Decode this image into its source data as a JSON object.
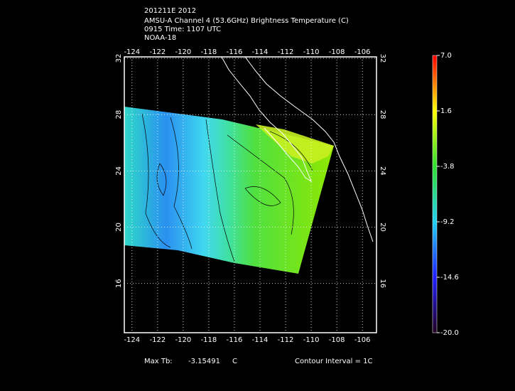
{
  "header": {
    "lines": [
      "201211E 2012",
      "AMSU-A Channel 4 (53.6GHz) Brightness Temperature (C)",
      "0915 Time: 1107 UTC",
      "NOAA-18"
    ]
  },
  "map": {
    "lonlim": [
      -124.6,
      -104.9
    ],
    "latlim": [
      12.5,
      32.1
    ],
    "lon_ticks": [
      -124,
      -122,
      -120,
      -118,
      -116,
      -114,
      -112,
      -110,
      -108,
      -106
    ],
    "lat_ticks": [
      16,
      20,
      24,
      28,
      32
    ]
  },
  "colorbar": {
    "lim": [
      -20,
      7
    ],
    "ticks": [
      {
        "value": 7,
        "label": "7.0"
      },
      {
        "value": 1.6,
        "label": "1.6"
      },
      {
        "value": -3.8,
        "label": "-3.8"
      },
      {
        "value": -9.2,
        "label": "-9.2"
      },
      {
        "value": -14.6,
        "label": "-14.6"
      },
      {
        "value": -20,
        "label": "-20.0"
      }
    ]
  },
  "footer": {
    "max_label": "Max Tb:",
    "max_value": -3.15491,
    "unit": "C",
    "contour": "Contour Interval = 1C"
  }
}
